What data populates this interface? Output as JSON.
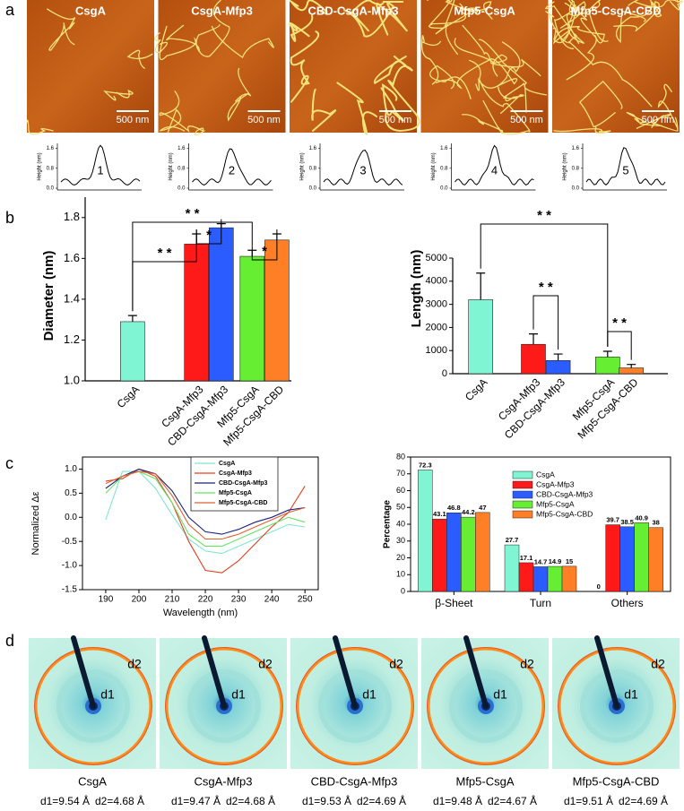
{
  "panel_labels": [
    "a",
    "b",
    "c",
    "d"
  ],
  "afm": {
    "images": [
      {
        "label": "CsgA",
        "scale": "500 nm",
        "profile": "1"
      },
      {
        "label": "CsgA-Mfp3",
        "scale": "500 nm",
        "profile": "2"
      },
      {
        "label": "CBD-CsgA-Mfp3",
        "scale": "500 nm",
        "profile": "3"
      },
      {
        "label": "Mfp5-CsgA",
        "scale": "500 nm",
        "profile": "4"
      },
      {
        "label": "Mfp5-CsgA-CBD",
        "scale": "500 nm",
        "profile": "5"
      }
    ],
    "profile_ylabel": "Height (nm)",
    "profile_yticks": [
      {
        "value": 0,
        "label": "0.0"
      },
      0.8,
      1.6
    ]
  },
  "chart_data": [
    {
      "type": "bar",
      "ylabel": "Diameter (nm)",
      "categories": [
        "CsgA",
        "CsgA-Mfp3",
        "CBD-CsgA-Mfp3",
        "Mfp5-CsgA",
        "Mfp5-CsgA-CBD"
      ],
      "values": [
        1.29,
        1.67,
        1.75,
        1.61,
        1.69
      ],
      "errors": [
        0.03,
        0.05,
        0.02,
        0.03,
        0.03
      ],
      "colors": [
        "#7ff5d4",
        "#ff1a1a",
        "#2a5cff",
        "#66ee33",
        "#ff7f27"
      ],
      "ylim": [
        1.0,
        1.9
      ],
      "yticks": [
        {
          "value": 1.0,
          "label": "1.0"
        },
        1.2,
        1.4,
        1.6,
        1.8
      ],
      "annotations": [
        "* *",
        "* *",
        "*",
        "*"
      ]
    },
    {
      "type": "bar",
      "ylabel": "Length (nm)",
      "categories": [
        "CsgA",
        "CsgA-Mfp3",
        "CBD-CsgA-Mfp3",
        "Mfp5-CsgA",
        "Mfp5-CsgA-CBD"
      ],
      "values": [
        3200,
        1270,
        570,
        720,
        250
      ],
      "errors": [
        1150,
        450,
        280,
        250,
        150
      ],
      "colors": [
        "#7ff5d4",
        "#ff1a1a",
        "#2a5cff",
        "#66ee33",
        "#ff7f27"
      ],
      "ylim": [
        0,
        5000
      ],
      "yticks": [
        0,
        1000,
        2000,
        3000,
        4000,
        5000
      ],
      "annotations": [
        "* *",
        "* *",
        "* *"
      ]
    },
    {
      "type": "line",
      "xlabel": "Wavelength (nm)",
      "ylabel": "Normalized Δε",
      "x": [
        190,
        195,
        200,
        205,
        210,
        215,
        220,
        225,
        230,
        235,
        240,
        245,
        250
      ],
      "series": [
        {
          "name": "CsgA",
          "color": "#7fe6cf",
          "values": [
            -0.05,
            0.95,
            0.95,
            0.6,
            0.05,
            -0.45,
            -0.7,
            -0.75,
            -0.6,
            -0.45,
            -0.3,
            -0.15,
            -0.2
          ]
        },
        {
          "name": "CsgA-Mfp3",
          "color": "#e04020",
          "values": [
            0.75,
            0.8,
            1.0,
            0.85,
            0.3,
            -0.5,
            -1.1,
            -1.15,
            -0.9,
            -0.55,
            -0.2,
            0.1,
            0.65
          ]
        },
        {
          "name": "CBD-CsgA-Mfp3",
          "color": "#1a237e",
          "values": [
            0.6,
            0.85,
            1.0,
            0.9,
            0.55,
            0.0,
            -0.3,
            -0.35,
            -0.25,
            -0.1,
            0.0,
            0.15,
            0.2
          ]
        },
        {
          "name": "Mfp5-CsgA",
          "color": "#66e266",
          "values": [
            0.5,
            0.85,
            0.95,
            0.8,
            0.3,
            -0.35,
            -0.6,
            -0.6,
            -0.45,
            -0.3,
            -0.15,
            0.0,
            -0.1
          ]
        },
        {
          "name": "Mfp5-CsgA-CBD",
          "color": "#e06030",
          "values": [
            0.7,
            0.85,
            0.95,
            0.9,
            0.45,
            -0.15,
            -0.45,
            -0.45,
            -0.35,
            -0.2,
            -0.05,
            0.1,
            0.2
          ]
        }
      ],
      "xlim": [
        183,
        254
      ],
      "xticks": [
        190,
        200,
        210,
        220,
        230,
        240,
        250
      ],
      "ylim": [
        -1.5,
        1.25
      ],
      "yticks": [
        -1.5,
        {
          "value": -1.0,
          "label": "-1.0"
        },
        -0.5,
        {
          "value": 0.0,
          "label": "0.0"
        },
        0.5,
        {
          "value": 1.0,
          "label": "1.0"
        }
      ]
    },
    {
      "type": "grouped-bar",
      "ylabel": "Percentage",
      "categories": [
        "β-Sheet",
        "Turn",
        "Others"
      ],
      "series": [
        {
          "name": "CsgA",
          "color": "#7ff5d4",
          "values": [
            72.3,
            27.7,
            0
          ]
        },
        {
          "name": "CsgA-Mfp3",
          "color": "#ff1a1a",
          "values": [
            43.1,
            17.1,
            39.7
          ]
        },
        {
          "name": "CBD-CsgA-Mfp3",
          "color": "#2a5cff",
          "values": [
            46.8,
            14.7,
            38.5
          ]
        },
        {
          "name": "Mfp5-CsgA",
          "color": "#66ee33",
          "values": [
            44.2,
            14.9,
            40.9
          ]
        },
        {
          "name": "Mfp5-CsgA-CBD",
          "color": "#ff7f27",
          "values": [
            47,
            15,
            38
          ]
        }
      ],
      "ylim": [
        0,
        80
      ],
      "yticks": [
        0,
        10,
        20,
        30,
        40,
        50,
        60,
        70,
        80
      ]
    }
  ],
  "xrd": {
    "ring_labels": [
      "d2",
      "d1"
    ],
    "images": [
      {
        "label": "CsgA",
        "d1": "d1=9.54 Å",
        "d2": "d2=4.68 Å"
      },
      {
        "label": "CsgA-Mfp3",
        "d1": "d1=9.47 Å",
        "d2": "d2=4.68 Å"
      },
      {
        "label": "CBD-CsgA-Mfp3",
        "d1": "d1=9.53 Å",
        "d2": "d2=4.69 Å"
      },
      {
        "label": "Mfp5-CsgA",
        "d1": "d1=9.48 Å",
        "d2": "d2=4.67 Å"
      },
      {
        "label": "Mfp5-CsgA-CBD",
        "d1": "d1=9.51 Å",
        "d2": "d2=4.69 Å"
      }
    ]
  }
}
